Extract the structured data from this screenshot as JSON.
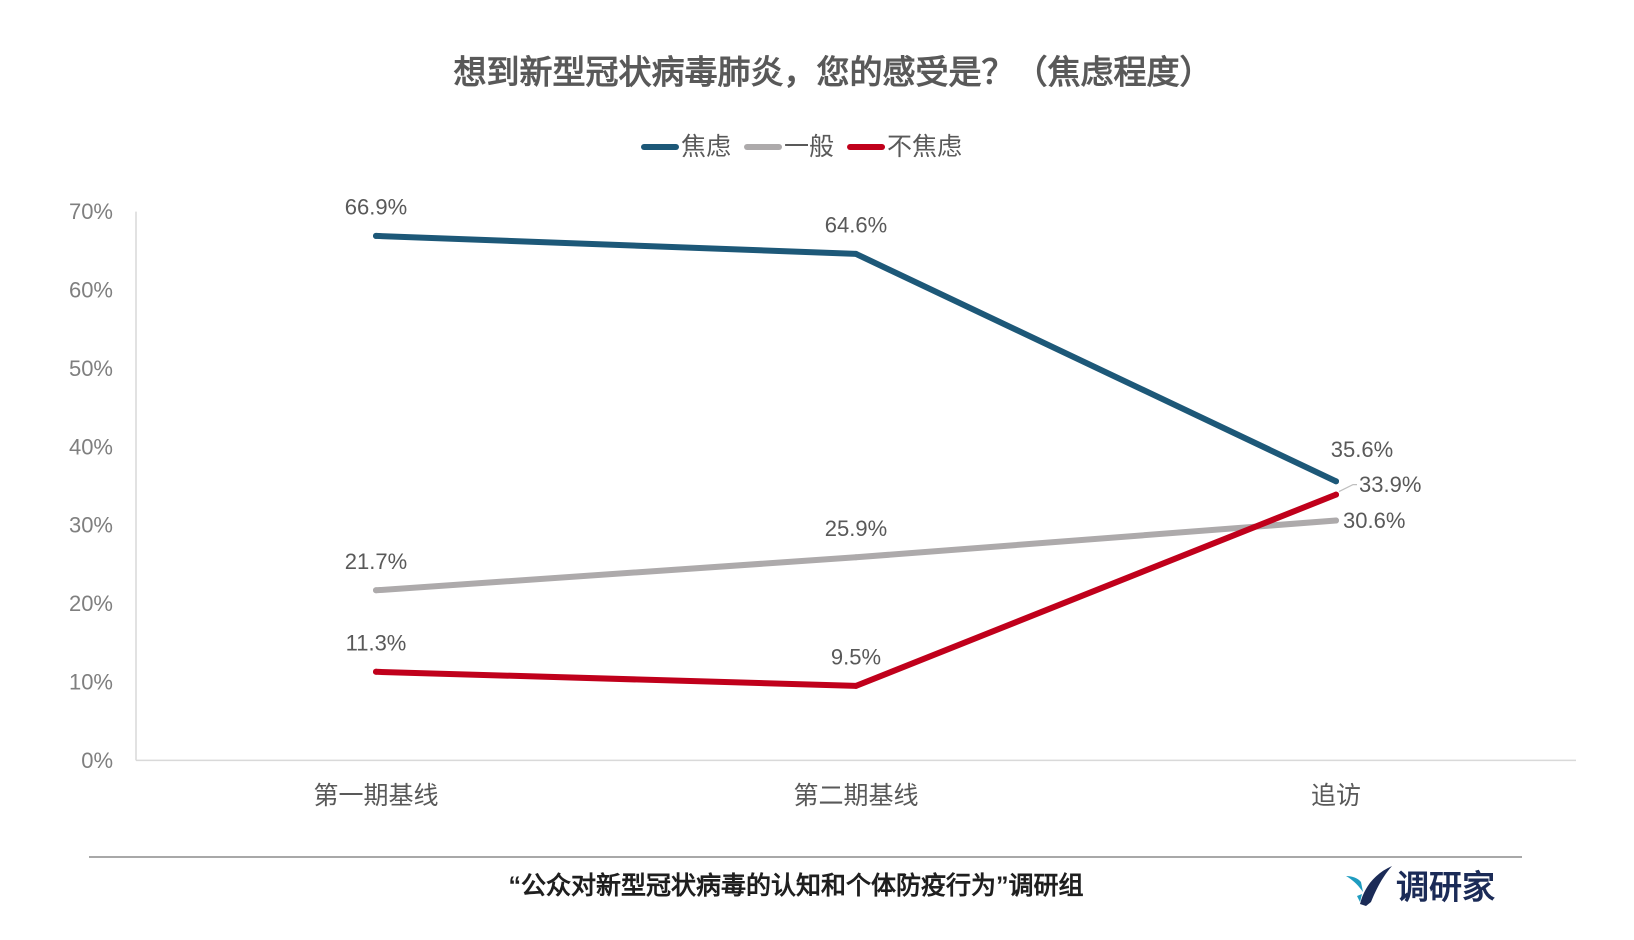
{
  "chart_data": {
    "type": "line",
    "title": "想到新型冠状病毒肺炎，您的感受是？（焦虑程度）",
    "xlabel": "",
    "ylabel": "",
    "categories": [
      "第一期基线",
      "第二期基线",
      "追访"
    ],
    "series": [
      {
        "name": "焦虑",
        "color": "#1D5878",
        "values": [
          66.9,
          64.6,
          35.6
        ],
        "data_labels": [
          "66.9%",
          "64.6%",
          "35.6%"
        ]
      },
      {
        "name": "一般",
        "color": "#ADAAAB",
        "values": [
          21.7,
          25.9,
          30.6
        ],
        "data_labels": [
          "21.7%",
          "25.9%",
          "30.6%"
        ]
      },
      {
        "name": "不焦虑",
        "color": "#C0001B",
        "values": [
          11.3,
          9.5,
          33.9
        ],
        "data_labels": [
          "11.3%",
          "9.5%",
          "33.9%"
        ]
      }
    ],
    "ylim": [
      0,
      70
    ],
    "yticks": [
      0,
      10,
      20,
      30,
      40,
      50,
      60,
      70
    ],
    "ytick_labels": [
      "0%",
      "10%",
      "20%",
      "30%",
      "40%",
      "50%",
      "60%",
      "70%"
    ],
    "grid": false,
    "legend": "top-center"
  },
  "footer": {
    "source": "“公众对新型冠状病毒的认知和个体防疫行为”调研组"
  },
  "logo": {
    "text": "调研家",
    "icon": "logo-bird-icon",
    "colors": {
      "primary": "#1B2B57",
      "accent": "#1E9CC0"
    }
  }
}
